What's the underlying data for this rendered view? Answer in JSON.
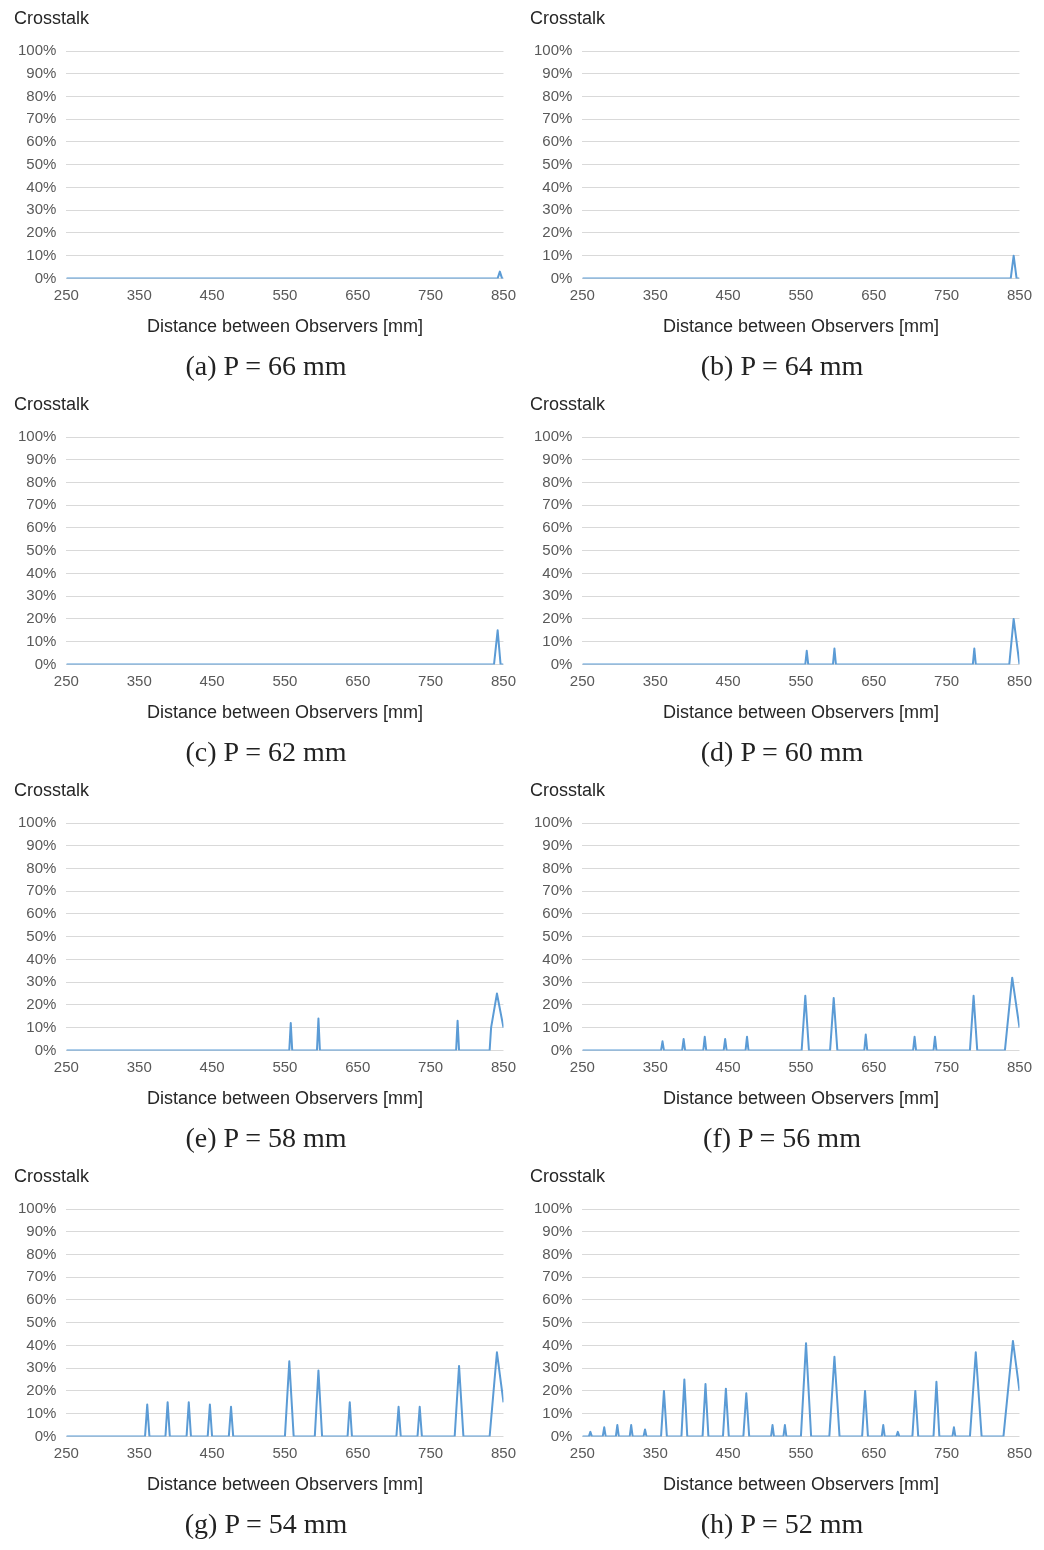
{
  "chart_data": [
    {
      "type": "line",
      "ylabel": "Crosstalk",
      "xlabel": "Distance between Observers [mm]",
      "annotations": [
        "(a) P = 66 mm"
      ],
      "xlim": [
        250,
        850
      ],
      "xticks": [
        250,
        350,
        450,
        550,
        650,
        750,
        850
      ],
      "ylim": [
        0,
        100
      ],
      "yticks": [
        {
          "value": 0,
          "label": "0%"
        },
        {
          "value": 10,
          "label": "10%"
        },
        {
          "value": 20,
          "label": "20%"
        },
        {
          "value": 30,
          "label": "30%"
        },
        {
          "value": 40,
          "label": "40%"
        },
        {
          "value": 50,
          "label": "50%"
        },
        {
          "value": 60,
          "label": "60%"
        },
        {
          "value": 70,
          "label": "70%"
        },
        {
          "value": 80,
          "label": "80%"
        },
        {
          "value": 90,
          "label": "90%"
        },
        {
          "value": 100,
          "label": "100%"
        }
      ],
      "grid": "y",
      "marker": "none",
      "series": [
        {
          "color": "#5b9bd5",
          "x": [
            250,
            842,
            845,
            848,
            850
          ],
          "values": [
            0,
            0,
            3,
            0,
            0
          ]
        }
      ]
    },
    {
      "type": "line",
      "ylabel": "Crosstalk",
      "xlabel": "Distance between Observers [mm]",
      "annotations": [
        "(b) P = 64 mm"
      ],
      "xlim": [
        250,
        850
      ],
      "xticks": [
        250,
        350,
        450,
        550,
        650,
        750,
        850
      ],
      "ylim": [
        0,
        100
      ],
      "yticks": [
        {
          "value": 0,
          "label": "0%"
        },
        {
          "value": 10,
          "label": "10%"
        },
        {
          "value": 20,
          "label": "20%"
        },
        {
          "value": 30,
          "label": "30%"
        },
        {
          "value": 40,
          "label": "40%"
        },
        {
          "value": 50,
          "label": "50%"
        },
        {
          "value": 60,
          "label": "60%"
        },
        {
          "value": 70,
          "label": "70%"
        },
        {
          "value": 80,
          "label": "80%"
        },
        {
          "value": 90,
          "label": "90%"
        },
        {
          "value": 100,
          "label": "100%"
        }
      ],
      "grid": "y",
      "marker": "none",
      "series": [
        {
          "color": "#5b9bd5",
          "x": [
            250,
            838,
            842,
            846,
            850
          ],
          "values": [
            0,
            0,
            10,
            0,
            0
          ]
        }
      ]
    },
    {
      "type": "line",
      "ylabel": "Crosstalk",
      "xlabel": "Distance between Observers [mm]",
      "annotations": [
        "(c) P = 62 mm"
      ],
      "xlim": [
        250,
        850
      ],
      "xticks": [
        250,
        350,
        450,
        550,
        650,
        750,
        850
      ],
      "ylim": [
        0,
        100
      ],
      "yticks": [
        {
          "value": 0,
          "label": "0%"
        },
        {
          "value": 10,
          "label": "10%"
        },
        {
          "value": 20,
          "label": "20%"
        },
        {
          "value": 30,
          "label": "30%"
        },
        {
          "value": 40,
          "label": "40%"
        },
        {
          "value": 50,
          "label": "50%"
        },
        {
          "value": 60,
          "label": "60%"
        },
        {
          "value": 70,
          "label": "70%"
        },
        {
          "value": 80,
          "label": "80%"
        },
        {
          "value": 90,
          "label": "90%"
        },
        {
          "value": 100,
          "label": "100%"
        }
      ],
      "grid": "y",
      "marker": "none",
      "series": [
        {
          "color": "#5b9bd5",
          "x": [
            250,
            837,
            842,
            846,
            850
          ],
          "values": [
            0,
            0,
            15,
            0,
            0
          ]
        }
      ]
    },
    {
      "type": "line",
      "ylabel": "Crosstalk",
      "xlabel": "Distance between Observers [mm]",
      "annotations": [
        "(d) P = 60 mm"
      ],
      "xlim": [
        250,
        850
      ],
      "xticks": [
        250,
        350,
        450,
        550,
        650,
        750,
        850
      ],
      "ylim": [
        0,
        100
      ],
      "yticks": [
        {
          "value": 0,
          "label": "0%"
        },
        {
          "value": 10,
          "label": "10%"
        },
        {
          "value": 20,
          "label": "20%"
        },
        {
          "value": 30,
          "label": "30%"
        },
        {
          "value": 40,
          "label": "40%"
        },
        {
          "value": 50,
          "label": "50%"
        },
        {
          "value": 60,
          "label": "60%"
        },
        {
          "value": 70,
          "label": "70%"
        },
        {
          "value": 80,
          "label": "80%"
        },
        {
          "value": 90,
          "label": "90%"
        },
        {
          "value": 100,
          "label": "100%"
        }
      ],
      "grid": "y",
      "marker": "none",
      "series": [
        {
          "color": "#5b9bd5",
          "x": [
            250,
            556,
            558,
            560,
            594,
            596,
            598,
            786,
            788,
            790,
            836,
            842,
            850
          ],
          "values": [
            0,
            0,
            6,
            0,
            0,
            7,
            0,
            0,
            7,
            0,
            0,
            20,
            0
          ]
        }
      ]
    },
    {
      "type": "line",
      "ylabel": "Crosstalk",
      "xlabel": "Distance between Observers [mm]",
      "annotations": [
        "(e) P = 58 mm"
      ],
      "xlim": [
        250,
        850
      ],
      "xticks": [
        250,
        350,
        450,
        550,
        650,
        750,
        850
      ],
      "ylim": [
        0,
        100
      ],
      "yticks": [
        {
          "value": 0,
          "label": "0%"
        },
        {
          "value": 10,
          "label": "10%"
        },
        {
          "value": 20,
          "label": "20%"
        },
        {
          "value": 30,
          "label": "30%"
        },
        {
          "value": 40,
          "label": "40%"
        },
        {
          "value": 50,
          "label": "50%"
        },
        {
          "value": 60,
          "label": "60%"
        },
        {
          "value": 70,
          "label": "70%"
        },
        {
          "value": 80,
          "label": "80%"
        },
        {
          "value": 90,
          "label": "90%"
        },
        {
          "value": 100,
          "label": "100%"
        }
      ],
      "grid": "y",
      "marker": "none",
      "series": [
        {
          "color": "#5b9bd5",
          "x": [
            250,
            556,
            558,
            560,
            594,
            596,
            598,
            785,
            787,
            789,
            831,
            833,
            841,
            850
          ],
          "values": [
            0,
            0,
            12,
            0,
            0,
            14,
            0,
            0,
            13,
            0,
            0,
            10,
            25,
            10
          ]
        }
      ]
    },
    {
      "type": "line",
      "ylabel": "Crosstalk",
      "xlabel": "Distance between Observers [mm]",
      "annotations": [
        "(f) P = 56 mm"
      ],
      "xlim": [
        250,
        850
      ],
      "xticks": [
        250,
        350,
        450,
        550,
        650,
        750,
        850
      ],
      "ylim": [
        0,
        100
      ],
      "yticks": [
        {
          "value": 0,
          "label": "0%"
        },
        {
          "value": 10,
          "label": "10%"
        },
        {
          "value": 20,
          "label": "20%"
        },
        {
          "value": 30,
          "label": "30%"
        },
        {
          "value": 40,
          "label": "40%"
        },
        {
          "value": 50,
          "label": "50%"
        },
        {
          "value": 60,
          "label": "60%"
        },
        {
          "value": 70,
          "label": "70%"
        },
        {
          "value": 80,
          "label": "80%"
        },
        {
          "value": 90,
          "label": "90%"
        },
        {
          "value": 100,
          "label": "100%"
        }
      ],
      "grid": "y",
      "marker": "none",
      "series": [
        {
          "color": "#5b9bd5",
          "x": [
            250,
            358,
            360,
            362,
            387,
            389,
            391,
            416,
            418,
            420,
            444,
            446,
            448,
            474,
            476,
            478,
            551,
            556,
            561,
            590,
            595,
            600,
            637,
            639,
            641,
            704,
            706,
            708,
            732,
            734,
            736,
            782,
            787,
            792,
            830,
            840,
            850
          ],
          "values": [
            0,
            0,
            4,
            0,
            0,
            5,
            0,
            0,
            6,
            0,
            0,
            5,
            0,
            0,
            6,
            0,
            0,
            24,
            0,
            0,
            23,
            0,
            0,
            7,
            0,
            0,
            6,
            0,
            0,
            6,
            0,
            0,
            24,
            0,
            0,
            32,
            10
          ]
        }
      ]
    },
    {
      "type": "line",
      "ylabel": "Crosstalk",
      "xlabel": "Distance between Observers [mm]",
      "annotations": [
        "(g) P = 54 mm"
      ],
      "xlim": [
        250,
        850
      ],
      "xticks": [
        250,
        350,
        450,
        550,
        650,
        750,
        850
      ],
      "ylim": [
        0,
        100
      ],
      "yticks": [
        {
          "value": 0,
          "label": "0%"
        },
        {
          "value": 10,
          "label": "10%"
        },
        {
          "value": 20,
          "label": "20%"
        },
        {
          "value": 30,
          "label": "30%"
        },
        {
          "value": 40,
          "label": "40%"
        },
        {
          "value": 50,
          "label": "50%"
        },
        {
          "value": 60,
          "label": "60%"
        },
        {
          "value": 70,
          "label": "70%"
        },
        {
          "value": 80,
          "label": "80%"
        },
        {
          "value": 90,
          "label": "90%"
        },
        {
          "value": 100,
          "label": "100%"
        }
      ],
      "grid": "y",
      "marker": "none",
      "series": [
        {
          "color": "#5b9bd5",
          "x": [
            250,
            358,
            361,
            364,
            386,
            389,
            392,
            415,
            418,
            421,
            444,
            447,
            450,
            473,
            476,
            479,
            550,
            556,
            562,
            591,
            596,
            601,
            636,
            639,
            642,
            703,
            706,
            709,
            732,
            735,
            738,
            783,
            789,
            795,
            831,
            841,
            850
          ],
          "values": [
            0,
            0,
            14,
            0,
            0,
            15,
            0,
            0,
            15,
            0,
            0,
            14,
            0,
            0,
            13,
            0,
            0,
            33,
            0,
            0,
            29,
            0,
            0,
            15,
            0,
            0,
            13,
            0,
            0,
            13,
            0,
            0,
            31,
            0,
            0,
            37,
            15
          ]
        }
      ]
    },
    {
      "type": "line",
      "ylabel": "Crosstalk",
      "xlabel": "Distance between Observers [mm]",
      "annotations": [
        "(h) P = 52 mm"
      ],
      "xlim": [
        250,
        850
      ],
      "xticks": [
        250,
        350,
        450,
        550,
        650,
        750,
        850
      ],
      "ylim": [
        0,
        100
      ],
      "yticks": [
        {
          "value": 0,
          "label": "0%"
        },
        {
          "value": 10,
          "label": "10%"
        },
        {
          "value": 20,
          "label": "20%"
        },
        {
          "value": 30,
          "label": "30%"
        },
        {
          "value": 40,
          "label": "40%"
        },
        {
          "value": 50,
          "label": "50%"
        },
        {
          "value": 60,
          "label": "60%"
        },
        {
          "value": 70,
          "label": "70%"
        },
        {
          "value": 80,
          "label": "80%"
        },
        {
          "value": 90,
          "label": "90%"
        },
        {
          "value": 100,
          "label": "100%"
        }
      ],
      "grid": "y",
      "marker": "none",
      "series": [
        {
          "color": "#5b9bd5",
          "x": [
            250,
            259,
            261,
            263,
            278,
            280,
            282,
            296,
            298,
            300,
            315,
            317,
            319,
            334,
            336,
            338,
            358,
            362,
            366,
            386,
            390,
            394,
            415,
            419,
            423,
            443,
            447,
            451,
            471,
            475,
            479,
            509,
            511,
            513,
            526,
            528,
            530,
            550,
            557,
            564,
            589,
            596,
            603,
            634,
            638,
            642,
            661,
            663,
            665,
            681,
            683,
            685,
            703,
            707,
            711,
            732,
            736,
            740,
            758,
            760,
            762,
            782,
            790,
            798,
            828,
            841,
            850
          ],
          "values": [
            0,
            0,
            2,
            0,
            0,
            4,
            0,
            0,
            5,
            0,
            0,
            5,
            0,
            0,
            3,
            0,
            0,
            20,
            0,
            0,
            25,
            0,
            0,
            23,
            0,
            0,
            21,
            0,
            0,
            19,
            0,
            0,
            5,
            0,
            0,
            5,
            0,
            0,
            41,
            0,
            0,
            35,
            0,
            0,
            20,
            0,
            0,
            5,
            0,
            0,
            2,
            0,
            0,
            20,
            0,
            0,
            24,
            0,
            0,
            4,
            0,
            0,
            37,
            0,
            0,
            42,
            20
          ]
        }
      ]
    }
  ]
}
